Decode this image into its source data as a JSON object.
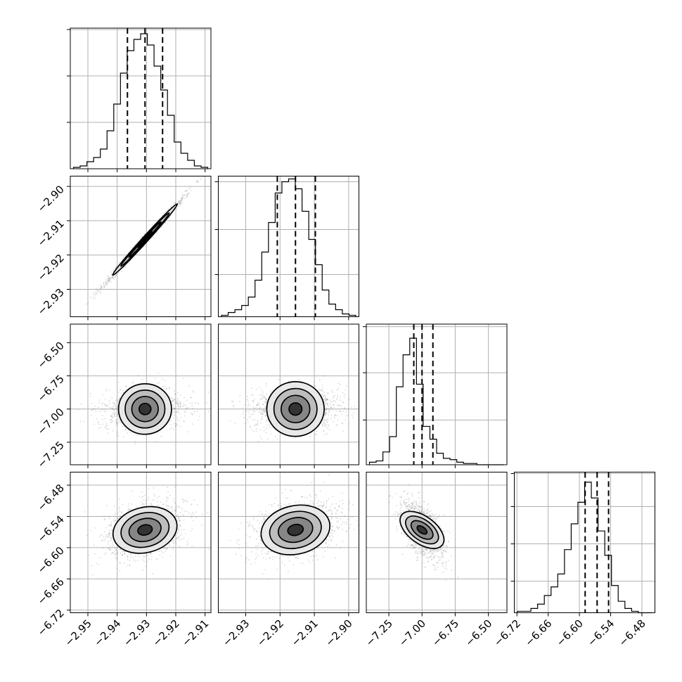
{
  "chart_data": {
    "type": "corner",
    "grid": true,
    "parameters": [
      {
        "range": [
          -2.956,
          -2.908
        ],
        "ticks": [
          -2.95,
          -2.94,
          -2.93,
          -2.92,
          -2.91
        ],
        "tick_labels": [
          "−2.95",
          "−2.94",
          "−2.93",
          "−2.92",
          "−2.91"
        ],
        "mean": -2.9305,
        "sigma": 0.0055,
        "quantiles": [
          -2.9365,
          -2.9305,
          -2.9245
        ]
      },
      {
        "range": [
          -2.938,
          -2.897
        ],
        "ticks": [
          -2.93,
          -2.92,
          -2.91,
          -2.9
        ],
        "tick_labels": [
          "−2.93",
          "−2.92",
          "−2.91",
          "−2.90"
        ],
        "mean": -2.9155,
        "sigma": 0.0052,
        "quantiles": [
          -2.9208,
          -2.9155,
          -2.9097
        ]
      },
      {
        "range": [
          -7.42,
          -6.36
        ],
        "ticks": [
          -7.25,
          -7.0,
          -6.75,
          -6.5
        ],
        "tick_labels": [
          "−7.25",
          "−7.00",
          "−6.75",
          "−6.50"
        ],
        "mean": -7.0,
        "sigma": 0.065,
        "quantiles": [
          -7.062,
          -7.0,
          -6.918
        ]
      },
      {
        "range": [
          -6.725,
          -6.455
        ],
        "ticks": [
          -6.72,
          -6.66,
          -6.6,
          -6.54,
          -6.48
        ],
        "tick_labels": [
          "−6.72",
          "−6.66",
          "−6.60",
          "−6.54",
          "−6.48"
        ],
        "mean": -6.566,
        "sigma": 0.022,
        "quantiles": [
          -6.589,
          -6.566,
          -6.544
        ]
      }
    ],
    "correlations": [
      [
        0,
        1,
        0.995
      ],
      [
        0,
        2,
        0.05
      ],
      [
        1,
        2,
        0.05
      ],
      [
        0,
        3,
        0.35
      ],
      [
        1,
        3,
        0.35
      ],
      [
        2,
        3,
        -0.55
      ]
    ],
    "histograms": [
      {
        "values": [
          1,
          2,
          5,
          8,
          14,
          27,
          46,
          68,
          84,
          92,
          96,
          88,
          73,
          56,
          38,
          19,
          11,
          6,
          2,
          1
        ],
        "ylim": [
          0,
          100
        ],
        "y_grid_values": [
          33,
          66,
          99
        ]
      },
      {
        "values": [
          1,
          3,
          5,
          8,
          14,
          26,
          46,
          67,
          88,
          96,
          98,
          91,
          75,
          55,
          37,
          19,
          9,
          5,
          2,
          1
        ],
        "ylim": [
          0,
          100
        ],
        "y_grid_values": [
          30,
          62,
          96
        ]
      },
      {
        "values": [
          2,
          3,
          10,
          22,
          61,
          86,
          99,
          63,
          30,
          20,
          9,
          5,
          4,
          2,
          1,
          1,
          0,
          0,
          0,
          0
        ],
        "ylim": [
          0,
          110
        ],
        "y_grid_values": [
          35,
          72,
          108
        ]
      },
      {
        "values": [
          1,
          1,
          3,
          6,
          12,
          18,
          27,
          44,
          62,
          77,
          91,
          80,
          57,
          40,
          19,
          8,
          3,
          1,
          0,
          0
        ],
        "ylim": [
          0,
          98
        ],
        "y_grid_values": [
          22,
          48,
          74,
          97
        ]
      }
    ]
  }
}
